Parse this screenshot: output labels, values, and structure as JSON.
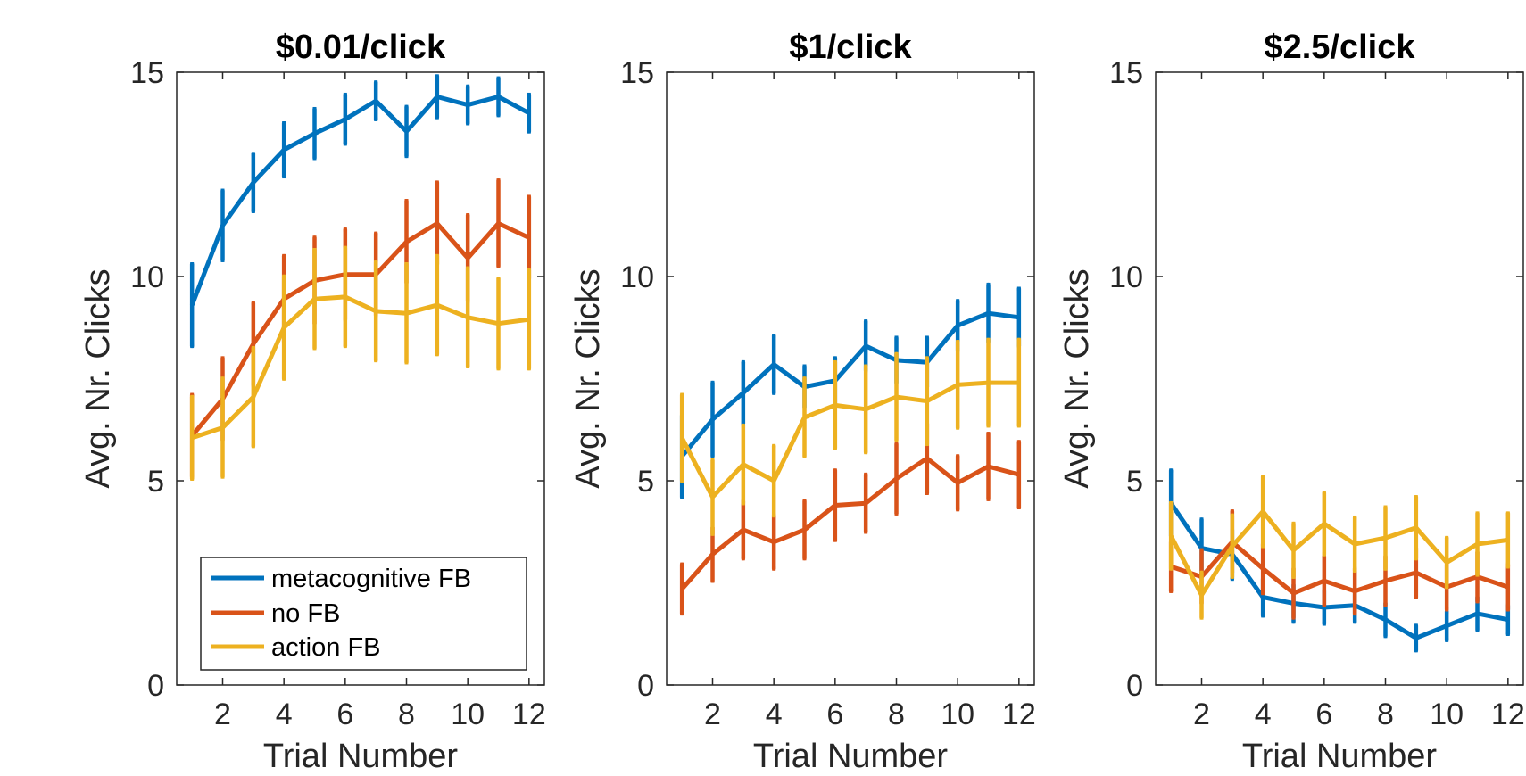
{
  "colors": {
    "metacognitive": "#0072BD",
    "nofb": "#D95319",
    "action": "#EDB120",
    "axis": "#262626"
  },
  "legend": [
    "metacognitive FB",
    "no FB",
    "action FB"
  ],
  "chart_data": [
    {
      "type": "line",
      "title": "$0.01/click",
      "xlabel": "Trial Number",
      "ylabel": "Avg. Nr. Clicks",
      "xlim": [
        0.5,
        12.5
      ],
      "ylim": [
        0,
        15
      ],
      "xticks": [
        2,
        4,
        6,
        8,
        10,
        12
      ],
      "yticks": [
        0,
        5,
        10,
        15
      ],
      "legend_position": "bottom-left",
      "x": [
        1,
        2,
        3,
        4,
        5,
        6,
        7,
        8,
        9,
        10,
        11,
        12
      ],
      "series": [
        {
          "name": "metacognitive FB",
          "values": [
            9.3,
            11.25,
            12.3,
            13.1,
            13.5,
            13.85,
            14.3,
            13.55,
            14.4,
            14.2,
            14.4,
            14.0
          ],
          "errors": [
            1.0,
            0.85,
            0.7,
            0.65,
            0.6,
            0.6,
            0.45,
            0.6,
            0.5,
            0.45,
            0.45,
            0.45
          ]
        },
        {
          "name": "no FB",
          "values": [
            6.1,
            7.0,
            8.35,
            9.45,
            9.9,
            10.05,
            10.05,
            10.85,
            11.3,
            10.45,
            11.3,
            10.95
          ],
          "errors": [
            1.0,
            1.0,
            1.0,
            1.05,
            1.05,
            1.1,
            1.0,
            1.0,
            1.0,
            1.05,
            1.05,
            1.0
          ]
        },
        {
          "name": "action FB",
          "values": [
            6.05,
            6.3,
            7.05,
            8.75,
            9.45,
            9.5,
            9.15,
            9.1,
            9.3,
            9.0,
            8.85,
            8.95
          ],
          "errors": [
            1.0,
            1.2,
            1.2,
            1.25,
            1.2,
            1.2,
            1.2,
            1.2,
            1.2,
            1.2,
            1.1,
            1.2
          ]
        }
      ]
    },
    {
      "type": "line",
      "title": "$1/click",
      "xlabel": "Trial Number",
      "ylabel": "Avg. Nr. Clicks",
      "xlim": [
        0.5,
        12.5
      ],
      "ylim": [
        0,
        15
      ],
      "xticks": [
        2,
        4,
        6,
        8,
        10,
        12
      ],
      "yticks": [
        0,
        5,
        10,
        15
      ],
      "x": [
        1,
        2,
        3,
        4,
        5,
        6,
        7,
        8,
        9,
        10,
        11,
        12
      ],
      "series": [
        {
          "name": "metacognitive FB",
          "values": [
            5.6,
            6.5,
            7.15,
            7.85,
            7.3,
            7.45,
            8.3,
            7.95,
            7.9,
            8.8,
            9.1,
            9.0
          ],
          "errors": [
            1.0,
            0.9,
            0.75,
            0.7,
            0.5,
            0.55,
            0.6,
            0.55,
            0.6,
            0.6,
            0.7,
            0.7
          ]
        },
        {
          "name": "no FB",
          "values": [
            2.35,
            3.2,
            3.8,
            3.5,
            3.8,
            4.4,
            4.45,
            5.05,
            5.55,
            4.95,
            5.35,
            5.15
          ],
          "errors": [
            0.6,
            0.65,
            0.7,
            0.65,
            0.7,
            0.85,
            0.7,
            0.85,
            0.85,
            0.65,
            0.8,
            0.8
          ]
        },
        {
          "name": "action FB",
          "values": [
            6.05,
            4.6,
            5.4,
            5.0,
            6.55,
            6.85,
            6.75,
            7.05,
            6.95,
            7.35,
            7.4,
            7.4
          ],
          "errors": [
            1.05,
            0.9,
            0.95,
            0.85,
            0.95,
            1.05,
            1.05,
            1.05,
            1.05,
            1.05,
            1.05,
            1.05
          ]
        }
      ]
    },
    {
      "type": "line",
      "title": "$2.5/click",
      "xlabel": "Trial Number",
      "ylabel": "Avg. Nr. Clicks",
      "xlim": [
        0.5,
        12.5
      ],
      "ylim": [
        0,
        15
      ],
      "xticks": [
        2,
        4,
        6,
        8,
        10,
        12
      ],
      "yticks": [
        0,
        5,
        10,
        15
      ],
      "x": [
        1,
        2,
        3,
        4,
        5,
        6,
        7,
        8,
        9,
        10,
        11,
        12
      ],
      "series": [
        {
          "name": "metacognitive FB",
          "values": [
            4.45,
            3.35,
            3.2,
            2.15,
            2.0,
            1.9,
            1.95,
            1.6,
            1.15,
            1.45,
            1.75,
            1.6
          ],
          "errors": [
            0.8,
            0.7,
            0.6,
            0.45,
            0.45,
            0.4,
            0.4,
            0.4,
            0.3,
            0.35,
            0.4,
            0.35
          ]
        },
        {
          "name": "no FB",
          "values": [
            2.9,
            2.65,
            3.5,
            2.85,
            2.25,
            2.55,
            2.3,
            2.55,
            2.75,
            2.4,
            2.65,
            2.4
          ],
          "errors": [
            0.6,
            0.65,
            0.75,
            0.6,
            0.6,
            0.6,
            0.55,
            0.6,
            0.6,
            0.55,
            0.6,
            0.55
          ]
        },
        {
          "name": "action FB",
          "values": [
            3.65,
            2.2,
            3.4,
            4.25,
            3.3,
            3.95,
            3.45,
            3.6,
            3.85,
            3.0,
            3.45,
            3.55
          ],
          "errors": [
            0.8,
            0.55,
            0.75,
            0.85,
            0.65,
            0.75,
            0.65,
            0.75,
            0.75,
            0.6,
            0.75,
            0.65
          ]
        }
      ]
    }
  ]
}
